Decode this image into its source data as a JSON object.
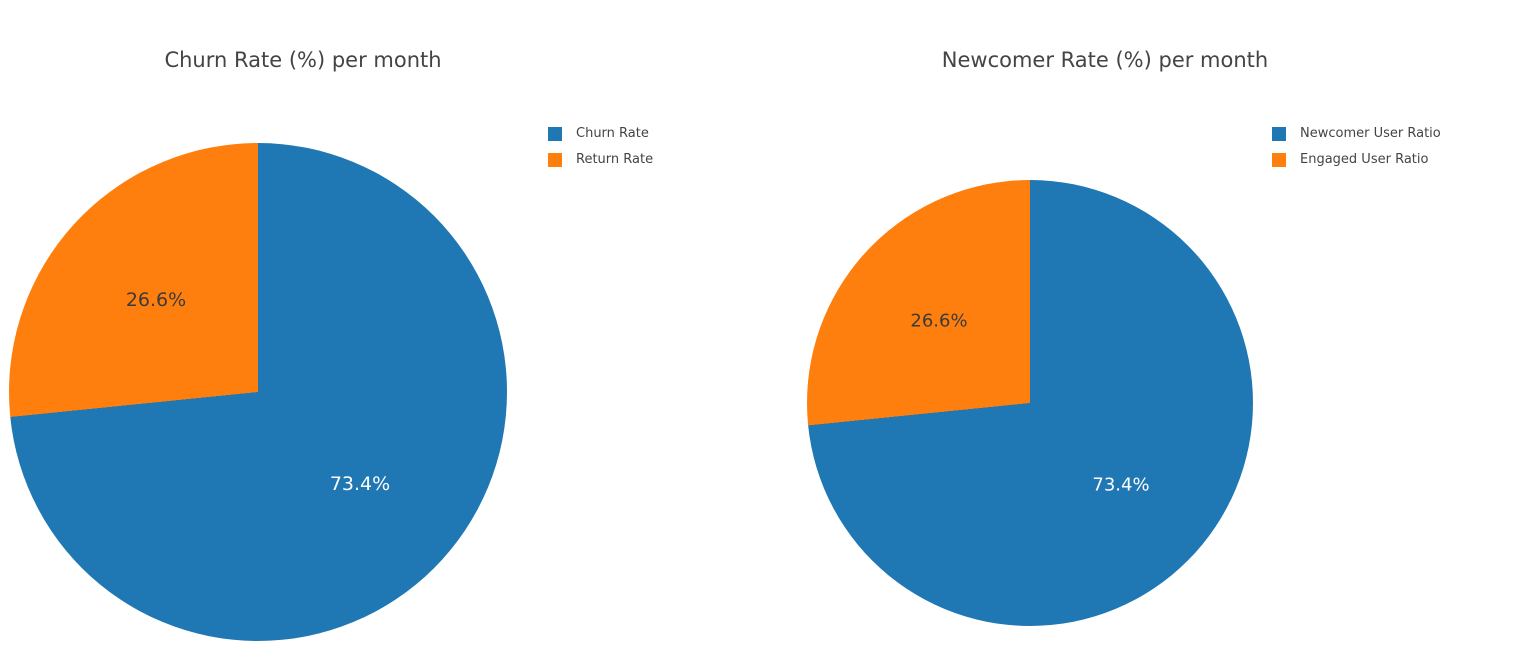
{
  "page": {
    "background_color": "#ffffff",
    "text_color": "#444444"
  },
  "chart_data": [
    {
      "type": "pie",
      "title": "Churn Rate (%) per month",
      "labels": [
        "Churn Rate",
        "Return Rate"
      ],
      "values": [
        73.4,
        26.6
      ],
      "slice_labels": [
        "73.4%",
        "26.6%"
      ],
      "colors": [
        "#1f77b4",
        "#ff7f0e"
      ],
      "slice_label_colors": [
        "#ffffff",
        "#3b3b3b"
      ],
      "start_angle": "12-oclock",
      "direction": "clockwise",
      "legend_position": "right"
    },
    {
      "type": "pie",
      "title": "Newcomer Rate (%) per month",
      "labels": [
        "Newcomer User Ratio",
        "Engaged User Ratio"
      ],
      "values": [
        73.4,
        26.6
      ],
      "slice_labels": [
        "73.4%",
        "26.6%"
      ],
      "colors": [
        "#1f77b4",
        "#ff7f0e"
      ],
      "slice_label_colors": [
        "#ffffff",
        "#3b3b3b"
      ],
      "start_angle": "12-oclock",
      "direction": "clockwise",
      "legend_position": "right"
    }
  ]
}
